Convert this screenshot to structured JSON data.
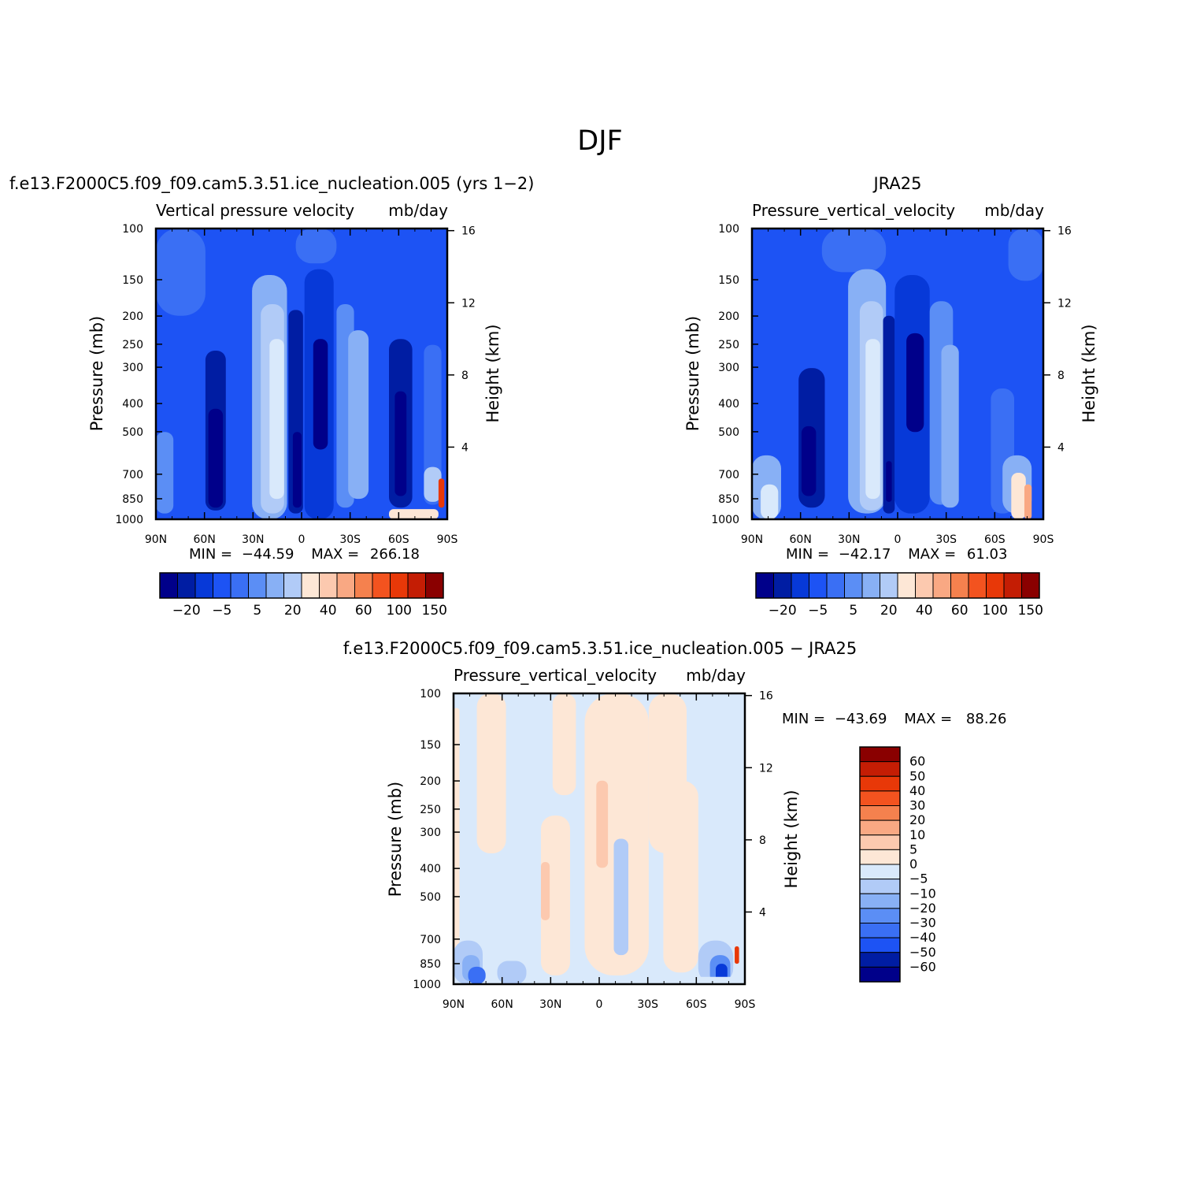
{
  "super_title": "DJF",
  "panels": [
    {
      "id": "model",
      "run_title": "f.e13.F2000C5.f09_f09.cam5.3.51.ice_nucleation.005 (yrs 1−2)",
      "var_title": "Vertical pressure velocity",
      "units": "mb/day",
      "ylabel": "Pressure (mb)",
      "ylabel_right": "Height (km)",
      "stats": {
        "min_label": "MIN =",
        "min": "−44.59",
        "max_label": "MAX =",
        "max": "266.18"
      }
    },
    {
      "id": "obs",
      "run_title": "JRA25",
      "var_title": "Pressure_vertical_velocity",
      "units": "mb/day",
      "ylabel": "Pressure (mb)",
      "ylabel_right": "Height (km)",
      "stats": {
        "min_label": "MIN =",
        "min": "−42.17",
        "max_label": "MAX =",
        "max": "61.03"
      }
    },
    {
      "id": "diff",
      "run_title": "f.e13.F2000C5.f09_f09.cam5.3.51.ice_nucleation.005 − JRA25",
      "var_title": "Pressure_vertical_velocity",
      "units": "mb/day",
      "ylabel": "Pressure (mb)",
      "ylabel_right": "Height (km)",
      "stats": {
        "min_label": "MIN =",
        "min": "−43.69",
        "max_label": "MAX =",
        "max": "88.26"
      }
    }
  ],
  "chart_data": [
    {
      "type": "heatmap",
      "title": "Vertical pressure velocity",
      "units": "mb/day",
      "ylabel": "Pressure (mb)",
      "ylabel_right": "Height (km)",
      "x_ticks": [
        "90N",
        "60N",
        "30N",
        "0",
        "30S",
        "60S",
        "90S"
      ],
      "x_range": [
        90,
        -90
      ],
      "y_ticks": [
        "100",
        "150",
        "200",
        "250",
        "300",
        "400",
        "500",
        "700",
        "850",
        "1000"
      ],
      "y_range_mb": [
        100,
        1000
      ],
      "y_scale": "log",
      "right_ticks": [
        "16",
        "12",
        "8",
        "4"
      ],
      "min": -44.59,
      "max": 266.18,
      "colorbar": {
        "orientation": "horizontal",
        "labels": [
          "−20",
          "−5",
          "5",
          "20",
          "40",
          "60",
          "100",
          "150"
        ]
      },
      "features": [
        {
          "lat": 90,
          "levels": [
            1000,
            700
          ],
          "value": -20
        },
        {
          "lat": 65,
          "levels": [
            850,
            300
          ],
          "value": -30
        },
        {
          "lat": 45,
          "levels": [
            700,
            250
          ],
          "value": -10
        },
        {
          "lat": 25,
          "levels": [
            1000,
            150
          ],
          "value": 10
        },
        {
          "lat": 5,
          "levels": [
            1000,
            200
          ],
          "value": -40
        },
        {
          "lat": -5,
          "levels": [
            700,
            200
          ],
          "value": -35
        },
        {
          "lat": -20,
          "levels": [
            850,
            200
          ],
          "value": -10
        },
        {
          "lat": -32,
          "levels": [
            850,
            250
          ],
          "value": 5
        },
        {
          "lat": -60,
          "levels": [
            1000,
            250
          ],
          "value": -30
        },
        {
          "lat": -88,
          "levels": [
            1000,
            850
          ],
          "value": 150
        }
      ]
    },
    {
      "type": "heatmap",
      "title": "Pressure_vertical_velocity",
      "units": "mb/day",
      "ylabel": "Pressure (mb)",
      "ylabel_right": "Height (km)",
      "x_ticks": [
        "90N",
        "60N",
        "30N",
        "0",
        "30S",
        "60S",
        "90S"
      ],
      "x_range": [
        90,
        -90
      ],
      "y_ticks": [
        "100",
        "150",
        "200",
        "250",
        "300",
        "400",
        "500",
        "700",
        "850",
        "1000"
      ],
      "y_range_mb": [
        100,
        1000
      ],
      "y_scale": "log",
      "right_ticks": [
        "16",
        "12",
        "8",
        "4"
      ],
      "min": -42.17,
      "max": 61.03,
      "colorbar": {
        "orientation": "horizontal",
        "labels": [
          "−20",
          "−5",
          "5",
          "20",
          "40",
          "60",
          "100",
          "150"
        ]
      },
      "features": [
        {
          "lat": 85,
          "levels": [
            1000,
            850
          ],
          "value": 10
        },
        {
          "lat": 60,
          "levels": [
            850,
            300
          ],
          "value": -35
        },
        {
          "lat": 25,
          "levels": [
            1000,
            150
          ],
          "value": 15
        },
        {
          "lat": 5,
          "levels": [
            1000,
            200
          ],
          "value": -40
        },
        {
          "lat": -5,
          "levels": [
            850,
            200
          ],
          "value": -40
        },
        {
          "lat": -20,
          "levels": [
            850,
            250
          ],
          "value": -10
        },
        {
          "lat": -35,
          "levels": [
            850,
            400
          ],
          "value": 5
        },
        {
          "lat": -82,
          "levels": [
            1000,
            700
          ],
          "value": 40
        }
      ]
    },
    {
      "type": "heatmap",
      "title": "Pressure_vertical_velocity",
      "units": "mb/day",
      "ylabel": "Pressure (mb)",
      "ylabel_right": "Height (km)",
      "x_ticks": [
        "90N",
        "60N",
        "30N",
        "0",
        "30S",
        "60S",
        "90S"
      ],
      "x_range": [
        90,
        -90
      ],
      "y_ticks": [
        "100",
        "150",
        "200",
        "250",
        "300",
        "400",
        "500",
        "700",
        "850",
        "1000"
      ],
      "y_range_mb": [
        100,
        1000
      ],
      "y_scale": "log",
      "right_ticks": [
        "16",
        "12",
        "8",
        "4"
      ],
      "min": -43.69,
      "max": 88.26,
      "colorbar": {
        "orientation": "vertical",
        "labels": [
          "60",
          "50",
          "40",
          "30",
          "20",
          "10",
          "5",
          "0",
          "−5",
          "−10",
          "−20",
          "−30",
          "−40",
          "−50",
          "−60"
        ]
      },
      "features": [
        {
          "lat": 75,
          "levels": [
            850,
            100
          ],
          "value": 2
        },
        {
          "lat": 30,
          "levels": [
            850,
            500
          ],
          "value": 5
        },
        {
          "lat": 0,
          "levels": [
            500,
            200
          ],
          "value": 5
        },
        {
          "lat": -30,
          "levels": [
            1000,
            100
          ],
          "value": 2
        },
        {
          "lat": 70,
          "levels": [
            1000,
            850
          ],
          "value": -20
        },
        {
          "lat": -73,
          "levels": [
            1000,
            850
          ],
          "value": -40
        },
        {
          "lat": -88,
          "levels": [
            1000,
            850
          ],
          "value": 50
        }
      ]
    }
  ],
  "colors": {
    "seq16": [
      "#00008a",
      "#001da3",
      "#0739d8",
      "#1d53f4",
      "#3a6ff4",
      "#5b8ef5",
      "#88b0f5",
      "#b1cbf7",
      "#d9e9fb",
      "#fde7d6",
      "#fcc9af",
      "#f9a883",
      "#f5814e",
      "#f3531f",
      "#e83808",
      "#c41d04",
      "#8a0000"
    ],
    "model_bins": [
      -30,
      -20,
      -15,
      -10,
      -5,
      0,
      5,
      10,
      20,
      30,
      40,
      50,
      60,
      80,
      100,
      120,
      150
    ]
  }
}
